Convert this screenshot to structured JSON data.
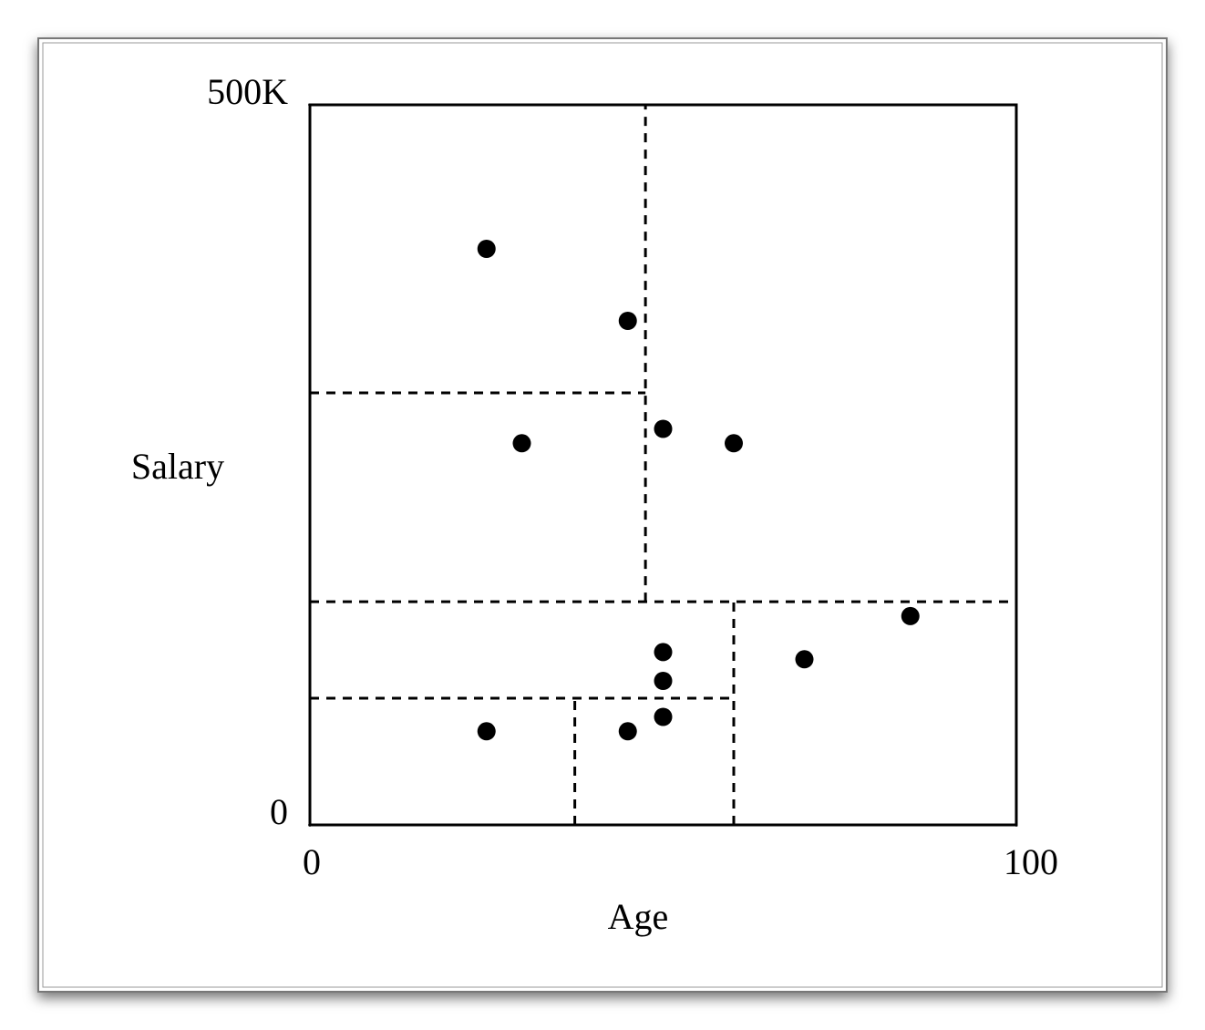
{
  "chart_data": {
    "type": "scatter",
    "x_label": "Age",
    "y_label": "Salary",
    "x": [
      25,
      45,
      50,
      30,
      60,
      85,
      70,
      50,
      50,
      50,
      25,
      45
    ],
    "values": [
      400000,
      350000,
      275000,
      265000,
      265000,
      145000,
      115000,
      120000,
      100000,
      75000,
      65000,
      65000
    ],
    "color": "#000000",
    "xlim": [
      0,
      100
    ],
    "ylim": [
      0,
      500000
    ],
    "xticks": [
      0,
      100
    ],
    "yticks": [
      0,
      {
        "value": 500000,
        "label": "500K"
      }
    ],
    "partitions": [
      {
        "x": [
          47.5,
          47.5
        ],
        "y": [
          155000,
          500000
        ]
      },
      {
        "x": [
          0,
          47.5
        ],
        "y": [
          300000,
          300000
        ]
      },
      {
        "x": [
          0,
          100
        ],
        "y": [
          155000,
          155000
        ]
      },
      {
        "x": [
          60,
          60
        ],
        "y": [
          0,
          155000
        ]
      },
      {
        "x": [
          0,
          60
        ],
        "y": [
          88000,
          88000
        ]
      },
      {
        "x": [
          37.5,
          37.5
        ],
        "y": [
          0,
          88000
        ]
      }
    ]
  }
}
